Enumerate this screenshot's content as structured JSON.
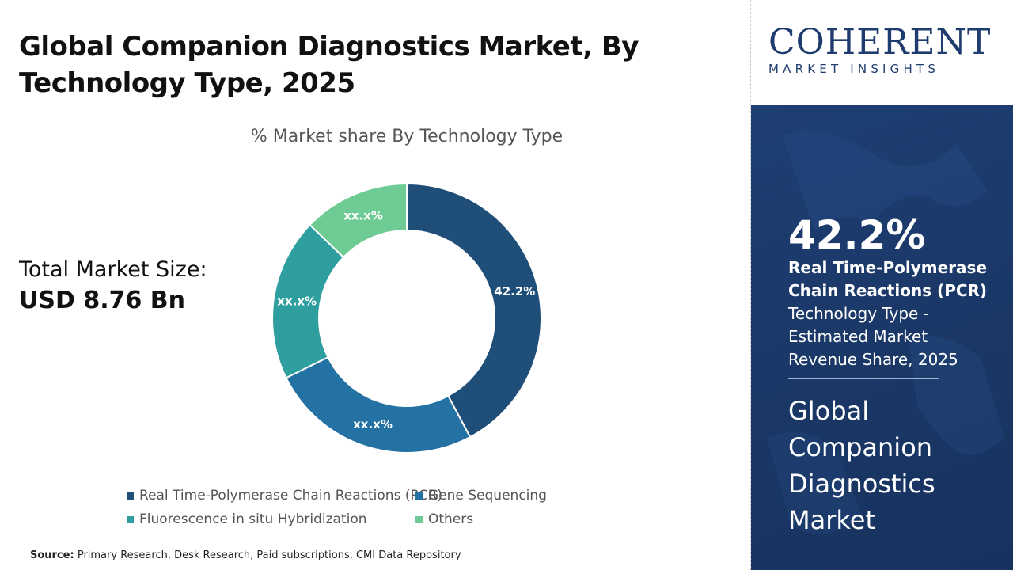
{
  "header": {
    "title_line1": "Global Companion Diagnostics Market, By",
    "title_line2": "Technology Type, 2025"
  },
  "market_size": {
    "label": "Total Market Size:",
    "value": "USD 8.76 Bn"
  },
  "source": {
    "label": "Source:",
    "text": "Primary Research, Desk Research, Paid subscriptions, CMI Data Repository"
  },
  "logo": {
    "word": "COHERENT",
    "subtitle": "MARKET INSIGHTS"
  },
  "highlight": {
    "value": "42.2%",
    "segment_line1": "Real Time-Polymerase",
    "segment_line2": "Chain Reactions (PCR)",
    "desc_line1": "Technology Type -",
    "desc_line2": "Estimated Market",
    "desc_line3": "Revenue Share, 2025",
    "market_line1": "Global",
    "market_line2": "Companion",
    "market_line3": "Diagnostics",
    "market_line4": "Market"
  },
  "colors": {
    "pcr": "#1f4e79",
    "gene_sequencing": "#2471a3",
    "fish": "#2e9e9f",
    "others": "#6fcb94",
    "panel": "#1e3f73"
  },
  "chart_data": {
    "type": "pie",
    "donut": true,
    "title": "% Market share By Technology Type",
    "categories": [
      "Real Time-Polymerase Chain Reactions (PCR)",
      "Gene Sequencing",
      "Fluorescence in situ Hybridization",
      "Others"
    ],
    "values": [
      42.2,
      25.5,
      19.5,
      12.8
    ],
    "data_labels": [
      "42.2%",
      "xx.x%",
      "xx.x%",
      "xx.x%"
    ],
    "legend_position": "bottom"
  }
}
